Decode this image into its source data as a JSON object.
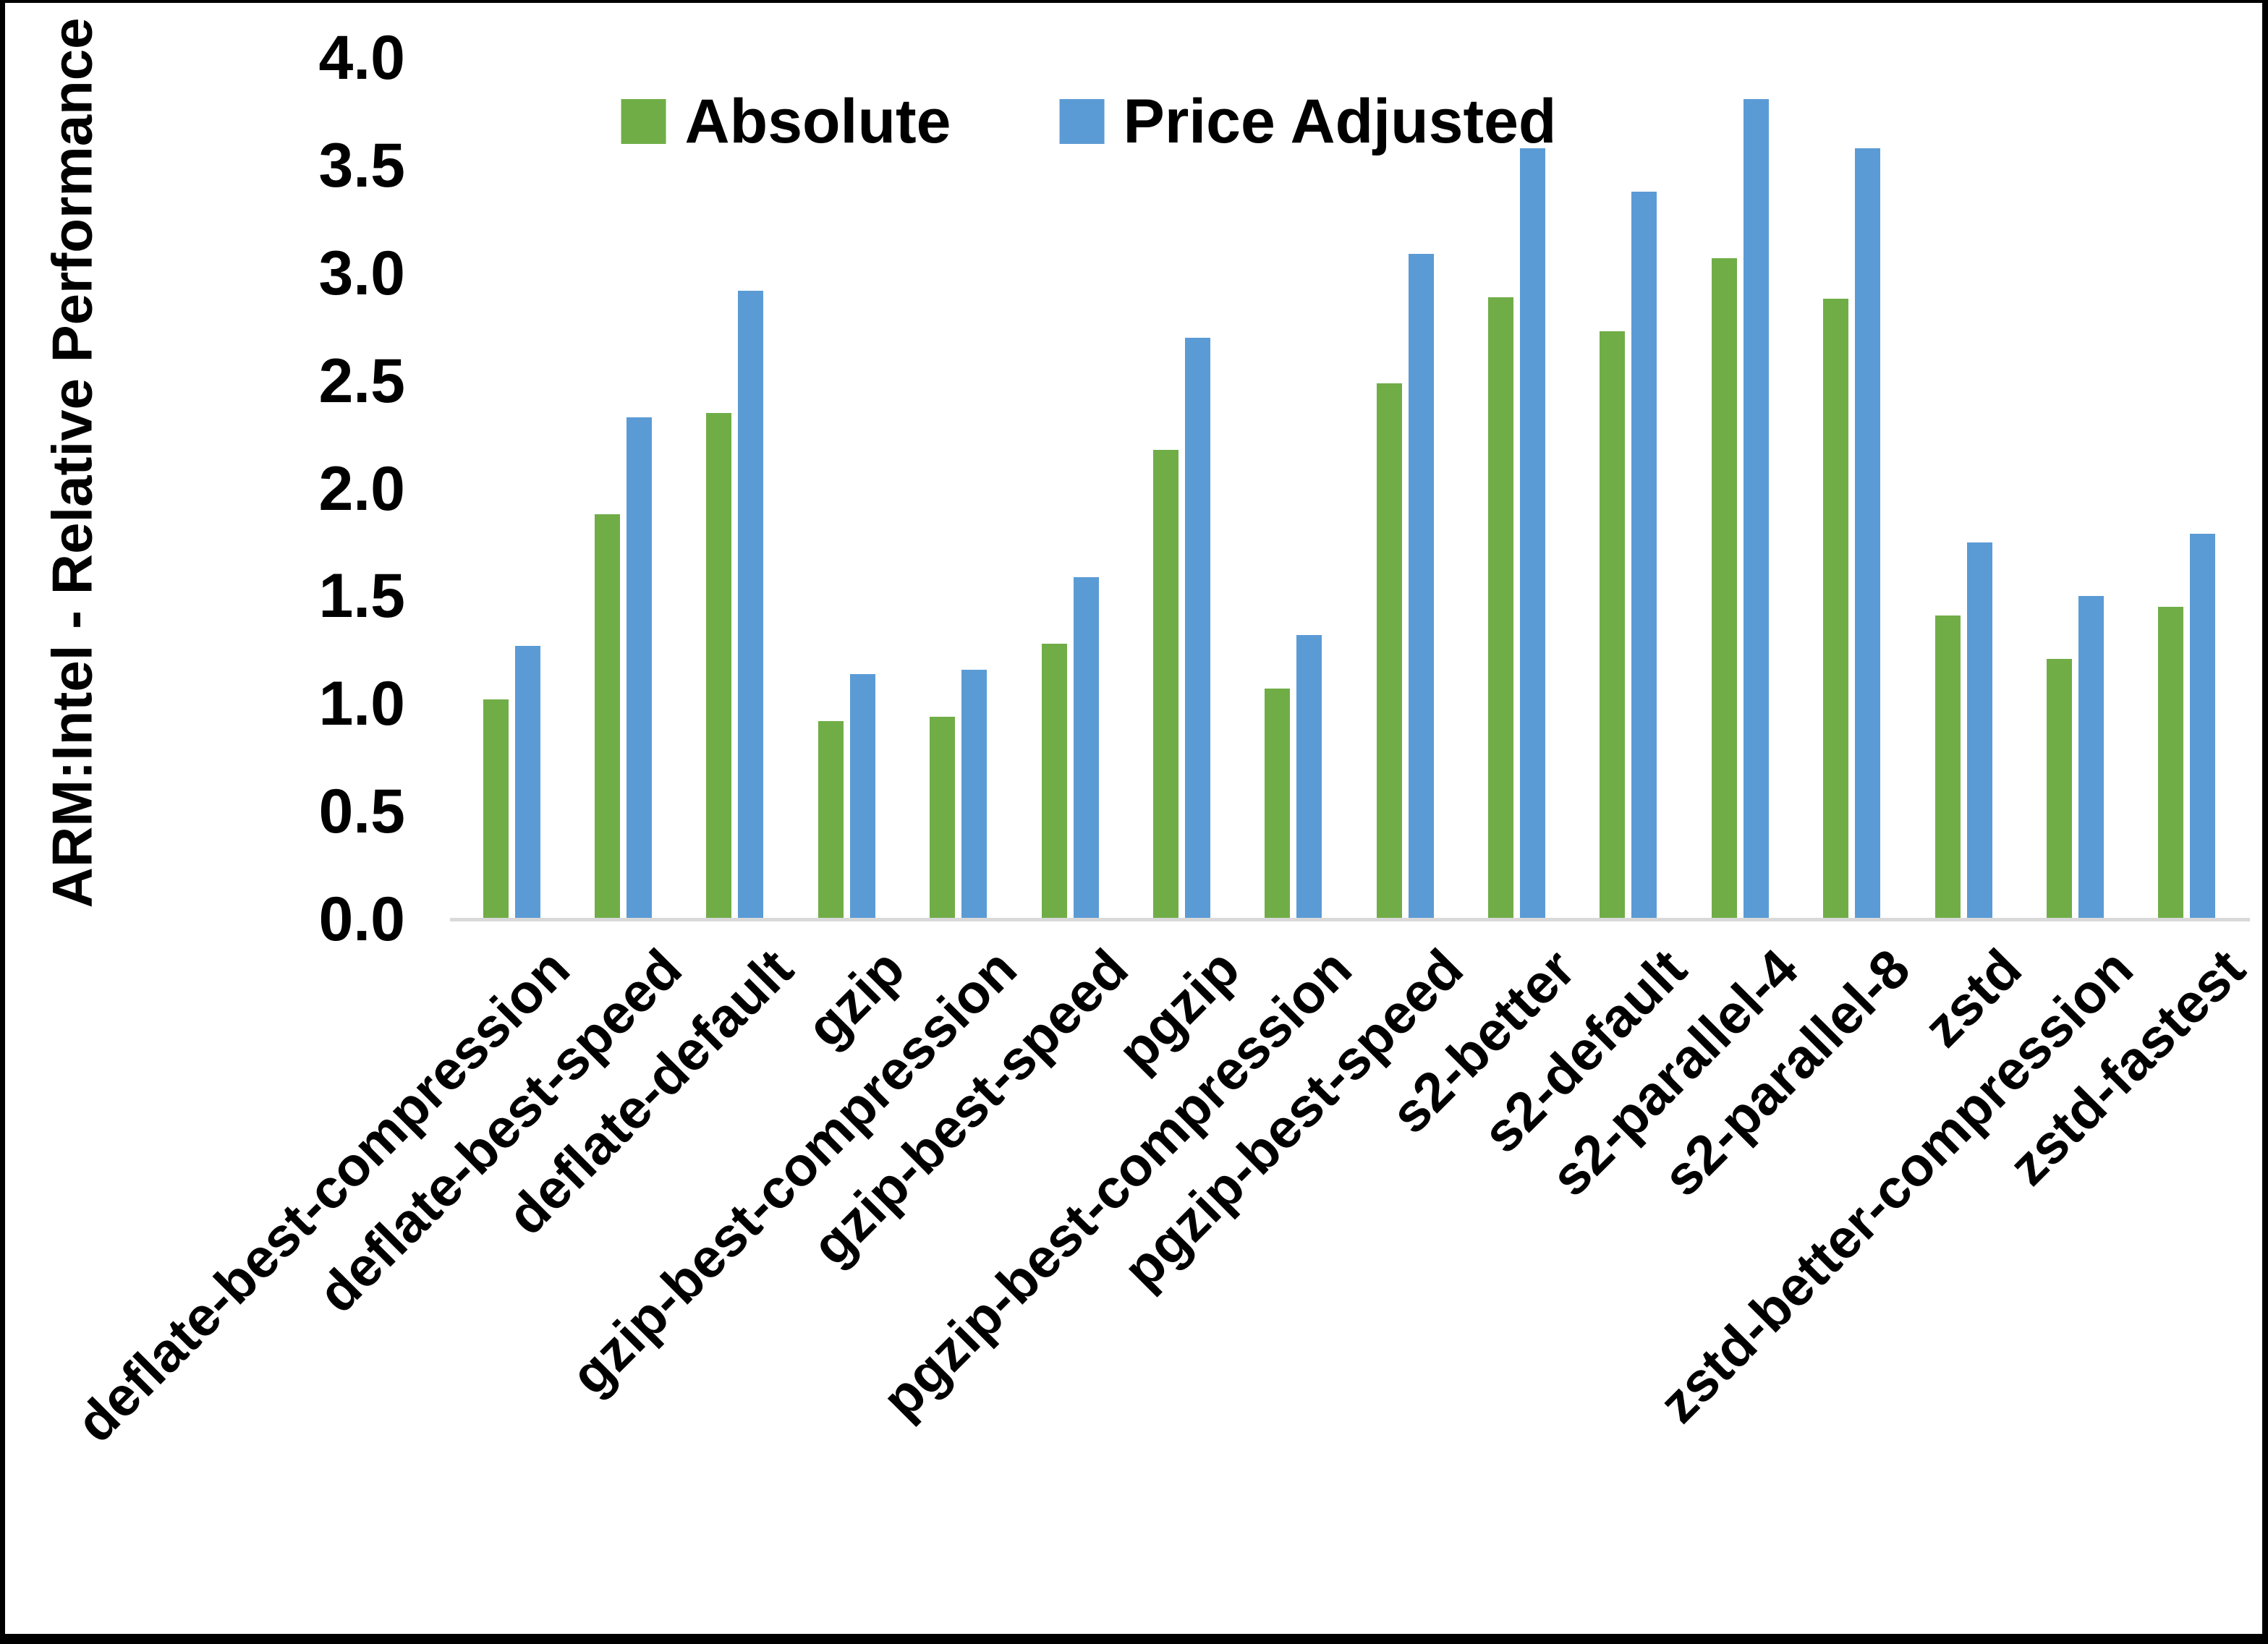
{
  "chart_data": {
    "type": "bar",
    "title": "",
    "ylabel": "ARM:Intel - Relative Performance",
    "xlabel": "",
    "ylim": [
      0.0,
      4.0
    ],
    "ytick_step": 0.5,
    "yticks": [
      "4.0",
      "3.5",
      "3.0",
      "2.5",
      "2.0",
      "1.5",
      "1.0",
      "0.5",
      "0.0"
    ],
    "grid": false,
    "legend_position": "top-center",
    "axis_line_color": "#D9D9D9",
    "text_color": "#000000",
    "background_color": "#FFFFFF",
    "frame_color": "#000000",
    "categories": [
      "deflate-best-compression",
      "deflate-best-speed",
      "deflate-default",
      "gzip",
      "gzip-best-compression",
      "gzip-best-speed",
      "pgzip",
      "pgzip-best-compression",
      "pgzip-best-speed",
      "s2-better",
      "s2-default",
      "s2-parallel-4",
      "s2-parallel-8",
      "zstd",
      "zstd-better-compression",
      "zstd-fastest"
    ],
    "series": [
      {
        "name": "Absolute",
        "color": "#70AD47",
        "values": [
          1.02,
          1.88,
          2.35,
          0.92,
          0.94,
          1.28,
          2.18,
          1.07,
          2.49,
          2.89,
          2.73,
          3.07,
          2.88,
          1.41,
          1.21,
          1.45
        ]
      },
      {
        "name": "Price Adjusted",
        "color": "#5B9BD5",
        "values": [
          1.27,
          2.33,
          2.92,
          1.14,
          1.16,
          1.59,
          2.7,
          1.32,
          3.09,
          3.58,
          3.38,
          3.81,
          3.58,
          1.75,
          1.5,
          1.79
        ]
      }
    ]
  }
}
